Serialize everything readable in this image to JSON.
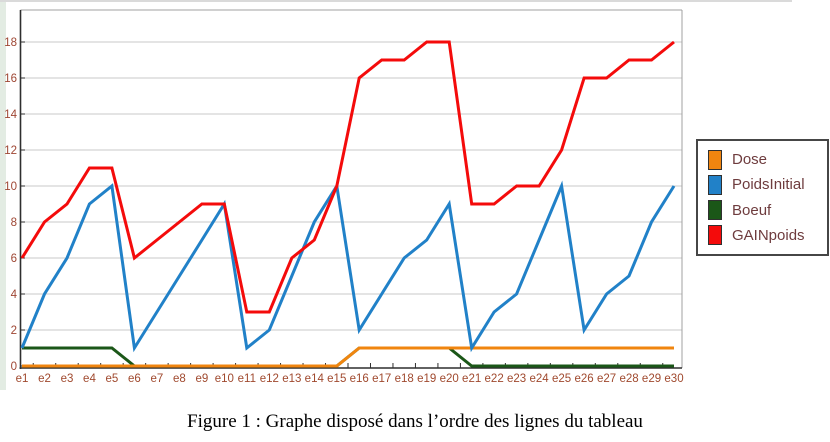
{
  "figure": {
    "caption": "Figure 1 : Graphe disposé dans l’ordre des lignes du tableau"
  },
  "colors": {
    "dose": "#f0850f",
    "poids_initial": "#2181c8",
    "boeuf": "#1b5718",
    "gain_poids": "#f40b0b",
    "x_axis_label": "#a0492e",
    "y_axis_label": "#9e4633",
    "legend_text": "#6e3c3e",
    "gridline": "#c9c9c9",
    "frame": "#a0a0a0",
    "axis": "#2e2e2e"
  },
  "legend": {
    "items": [
      {
        "label": "Dose",
        "color": "#f0850f"
      },
      {
        "label": "PoidsInitial",
        "color": "#2181c8"
      },
      {
        "label": "Boeuf",
        "color": "#1b5718"
      },
      {
        "label": "GAINpoids",
        "color": "#f40b0b"
      }
    ]
  },
  "chart_data": {
    "type": "line",
    "title": "",
    "xlabel": "",
    "ylabel": "",
    "categories": [
      "e1",
      "e2",
      "e3",
      "e4",
      "e5",
      "e6",
      "e7",
      "e8",
      "e9",
      "e10",
      "e11",
      "e12",
      "e13",
      "e14",
      "e15",
      "e16",
      "e17",
      "e18",
      "e19",
      "e20",
      "e21",
      "e22",
      "e23",
      "e24",
      "e25",
      "e26",
      "e27",
      "e28",
      "e29",
      "e30"
    ],
    "yticks": [
      0,
      2,
      4,
      6,
      8,
      10,
      12,
      14,
      16,
      18
    ],
    "ylim": [
      0,
      20
    ],
    "grid": true,
    "legend_position": "right",
    "series": [
      {
        "name": "Dose",
        "color": "#f0850f",
        "values": [
          0,
          0,
          0,
          0,
          0,
          0,
          0,
          0,
          0,
          0,
          0,
          0,
          0,
          0,
          0,
          1,
          1,
          1,
          1,
          1,
          1,
          1,
          1,
          1,
          1,
          1,
          1,
          1,
          1,
          1
        ]
      },
      {
        "name": "PoidsInitial",
        "color": "#2181c8",
        "values": [
          1,
          4,
          6,
          9,
          10,
          1,
          3,
          5,
          7,
          9,
          1,
          2,
          5,
          8,
          10,
          2,
          4,
          6,
          7,
          9,
          1,
          3,
          4,
          7,
          10,
          2,
          4,
          5,
          8,
          10
        ]
      },
      {
        "name": "Boeuf",
        "color": "#1b5718",
        "values": [
          1,
          1,
          1,
          1,
          1,
          0,
          0,
          0,
          0,
          0,
          0,
          0,
          0,
          0,
          0,
          1,
          1,
          1,
          1,
          1,
          0,
          0,
          0,
          0,
          0,
          0,
          0,
          0,
          0,
          0
        ]
      },
      {
        "name": "GAINpoids",
        "color": "#f40b0b",
        "values": [
          6,
          8,
          9,
          11,
          11,
          6,
          7,
          8,
          9,
          9,
          3,
          3,
          6,
          7,
          10,
          16,
          17,
          17,
          18,
          18,
          9,
          9,
          10,
          10,
          12,
          16,
          16,
          17,
          17,
          18
        ]
      }
    ],
    "draw_order": [
      "Boeuf",
      "Dose",
      "PoidsInitial",
      "GAINpoids"
    ]
  }
}
